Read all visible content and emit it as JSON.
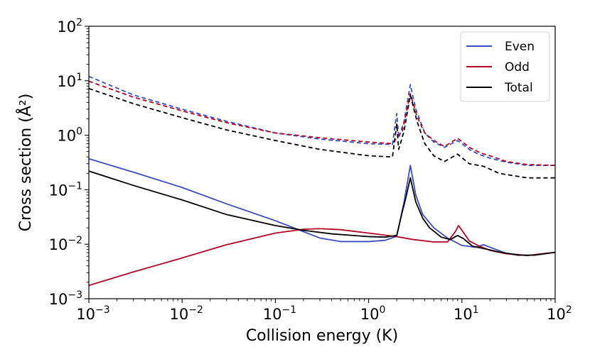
{
  "chart_data": {
    "type": "line",
    "title": "",
    "xlabel": "Collision energy (K)",
    "ylabel": "Cross section (Å²)",
    "xscale": "log",
    "yscale": "log",
    "xlim": [
      0.001,
      100
    ],
    "ylim": [
      0.001,
      100
    ],
    "x_ticks": [
      {
        "base": "10",
        "exp": "−3",
        "value": 0.001
      },
      {
        "base": "10",
        "exp": "−2",
        "value": 0.01
      },
      {
        "base": "10",
        "exp": "−1",
        "value": 0.1
      },
      {
        "base": "10",
        "exp": "0",
        "value": 1
      },
      {
        "base": "10",
        "exp": "1",
        "value": 10
      },
      {
        "base": "10",
        "exp": "2",
        "value": 100
      }
    ],
    "y_ticks": [
      {
        "base": "10",
        "exp": "−3",
        "value": 0.001
      },
      {
        "base": "10",
        "exp": "−2",
        "value": 0.01
      },
      {
        "base": "10",
        "exp": "−1",
        "value": 0.1
      },
      {
        "base": "10",
        "exp": "0",
        "value": 1
      },
      {
        "base": "10",
        "exp": "1",
        "value": 10
      },
      {
        "base": "10",
        "exp": "2",
        "value": 100
      }
    ],
    "legend": {
      "position": "top-right",
      "entries": [
        {
          "label": "Even",
          "color": "#3b4cc0"
        },
        {
          "label": "Odd",
          "color": "#b40426"
        },
        {
          "label": "Total",
          "color": "#000000"
        }
      ]
    },
    "series": [
      {
        "name": "Even (dashed)",
        "color": "#3b4cc0",
        "dash": true,
        "points": [
          [
            0.001,
            12
          ],
          [
            0.003,
            5.5
          ],
          [
            0.01,
            3
          ],
          [
            0.03,
            1.8
          ],
          [
            0.1,
            1.1
          ],
          [
            0.3,
            0.85
          ],
          [
            1,
            0.7
          ],
          [
            1.8,
            0.68
          ],
          [
            2.0,
            2.5
          ],
          [
            2.1,
            0.9
          ],
          [
            2.4,
            1.8
          ],
          [
            2.8,
            8.5
          ],
          [
            3.2,
            3
          ],
          [
            4,
            1.1
          ],
          [
            5,
            0.75
          ],
          [
            6.5,
            0.6
          ],
          [
            9,
            0.8
          ],
          [
            12,
            0.55
          ],
          [
            15,
            0.45
          ],
          [
            20,
            0.38
          ],
          [
            30,
            0.32
          ],
          [
            50,
            0.28
          ],
          [
            100,
            0.28
          ]
        ]
      },
      {
        "name": "Odd (dashed)",
        "color": "#b40426",
        "dash": true,
        "points": [
          [
            0.001,
            9.8
          ],
          [
            0.003,
            5
          ],
          [
            0.01,
            2.8
          ],
          [
            0.03,
            1.7
          ],
          [
            0.1,
            1.1
          ],
          [
            0.3,
            0.9
          ],
          [
            1,
            0.75
          ],
          [
            1.8,
            0.7
          ],
          [
            2.3,
            1.2
          ],
          [
            2.8,
            5.8
          ],
          [
            3.3,
            2.2
          ],
          [
            4,
            1.1
          ],
          [
            5,
            0.8
          ],
          [
            6.5,
            0.62
          ],
          [
            9,
            0.88
          ],
          [
            12,
            0.6
          ],
          [
            16,
            0.47
          ],
          [
            20,
            0.42
          ],
          [
            30,
            0.33
          ],
          [
            50,
            0.29
          ],
          [
            100,
            0.28
          ]
        ]
      },
      {
        "name": "Total (dashed)",
        "color": "#000000",
        "dash": true,
        "points": [
          [
            0.001,
            7.2
          ],
          [
            0.003,
            3.8
          ],
          [
            0.01,
            2.1
          ],
          [
            0.03,
            1.25
          ],
          [
            0.1,
            0.8
          ],
          [
            0.3,
            0.55
          ],
          [
            1,
            0.42
          ],
          [
            1.8,
            0.4
          ],
          [
            2.0,
            1.6
          ],
          [
            2.1,
            0.55
          ],
          [
            2.4,
            1.2
          ],
          [
            2.8,
            5.5
          ],
          [
            3.3,
            1.8
          ],
          [
            4,
            0.7
          ],
          [
            5,
            0.42
          ],
          [
            6.5,
            0.33
          ],
          [
            9,
            0.45
          ],
          [
            12,
            0.3
          ],
          [
            17,
            0.27
          ],
          [
            25,
            0.2
          ],
          [
            50,
            0.165
          ],
          [
            100,
            0.165
          ]
        ]
      },
      {
        "name": "Even",
        "color": "#3b4cc0",
        "dash": false,
        "points": [
          [
            0.001,
            0.37
          ],
          [
            0.003,
            0.21
          ],
          [
            0.01,
            0.11
          ],
          [
            0.03,
            0.055
          ],
          [
            0.1,
            0.027
          ],
          [
            0.2,
            0.017
          ],
          [
            0.3,
            0.013
          ],
          [
            0.5,
            0.0112
          ],
          [
            1,
            0.0112
          ],
          [
            1.5,
            0.0118
          ],
          [
            2.0,
            0.014
          ],
          [
            2.4,
            0.06
          ],
          [
            2.8,
            0.28
          ],
          [
            3.2,
            0.08
          ],
          [
            3.8,
            0.035
          ],
          [
            5,
            0.02
          ],
          [
            7,
            0.013
          ],
          [
            10,
            0.0095
          ],
          [
            14,
            0.0088
          ],
          [
            17,
            0.0098
          ],
          [
            20,
            0.0088
          ],
          [
            30,
            0.0068
          ],
          [
            50,
            0.0062
          ],
          [
            100,
            0.0071
          ]
        ]
      },
      {
        "name": "Odd",
        "color": "#b40426",
        "dash": false,
        "points": [
          [
            0.001,
            0.00175
          ],
          [
            0.003,
            0.0031
          ],
          [
            0.01,
            0.0056
          ],
          [
            0.03,
            0.0098
          ],
          [
            0.1,
            0.016
          ],
          [
            0.2,
            0.0188
          ],
          [
            0.3,
            0.0193
          ],
          [
            0.5,
            0.0185
          ],
          [
            1,
            0.016
          ],
          [
            2,
            0.0138
          ],
          [
            3,
            0.0122
          ],
          [
            5,
            0.011
          ],
          [
            7,
            0.011
          ],
          [
            8.5,
            0.017
          ],
          [
            9.2,
            0.022
          ],
          [
            10.5,
            0.016
          ],
          [
            12,
            0.0115
          ],
          [
            15,
            0.0094
          ],
          [
            20,
            0.0077
          ],
          [
            30,
            0.0067
          ],
          [
            50,
            0.0062
          ],
          [
            100,
            0.0071
          ]
        ]
      },
      {
        "name": "Total",
        "color": "#000000",
        "dash": false,
        "points": [
          [
            0.001,
            0.22
          ],
          [
            0.003,
            0.12
          ],
          [
            0.01,
            0.065
          ],
          [
            0.03,
            0.035
          ],
          [
            0.1,
            0.022
          ],
          [
            0.2,
            0.018
          ],
          [
            0.4,
            0.0155
          ],
          [
            1,
            0.0138
          ],
          [
            1.5,
            0.0135
          ],
          [
            2.0,
            0.0145
          ],
          [
            2.3,
            0.04
          ],
          [
            2.5,
            0.07
          ],
          [
            2.8,
            0.165
          ],
          [
            3.2,
            0.06
          ],
          [
            3.8,
            0.03
          ],
          [
            4.5,
            0.02
          ],
          [
            6,
            0.0135
          ],
          [
            7.5,
            0.0122
          ],
          [
            9,
            0.0145
          ],
          [
            10.5,
            0.0125
          ],
          [
            13,
            0.0092
          ],
          [
            18,
            0.0082
          ],
          [
            25,
            0.0072
          ],
          [
            40,
            0.0063
          ],
          [
            60,
            0.0063
          ],
          [
            100,
            0.0071
          ]
        ]
      }
    ]
  }
}
